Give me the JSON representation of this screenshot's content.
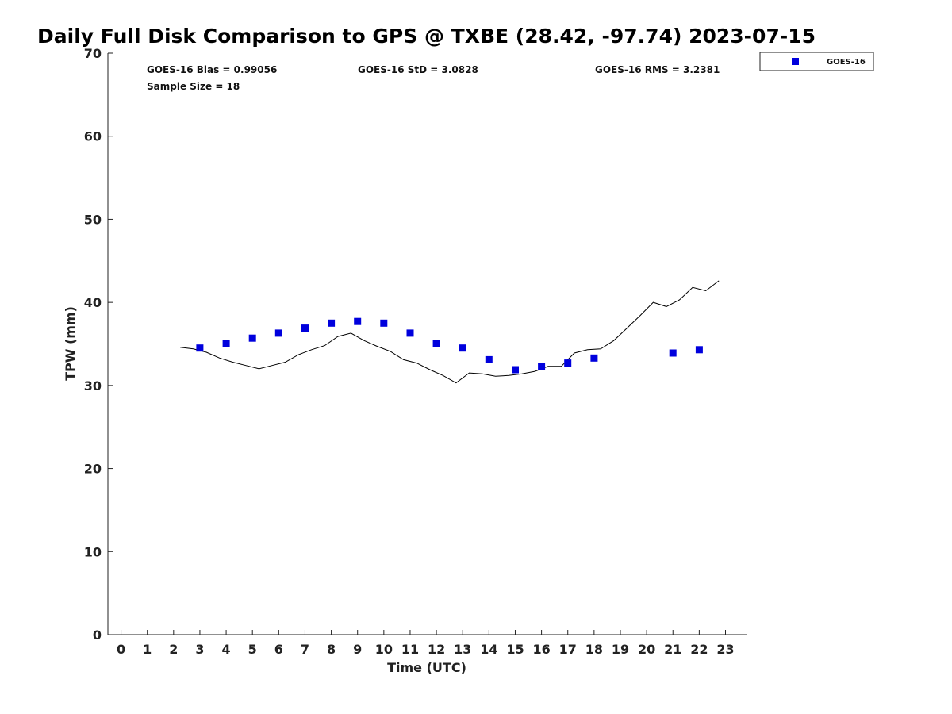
{
  "chart_data": {
    "type": "scatter",
    "title": "Daily Full Disk Comparison to GPS @ TXBE (28.42, -97.74) 2023-07-15",
    "xlabel": "Time (UTC)",
    "ylabel": "TPW (mm)",
    "xlim": [
      -0.5,
      23.8
    ],
    "ylim": [
      0,
      70
    ],
    "x_ticks": [
      0,
      1,
      2,
      3,
      4,
      5,
      6,
      7,
      8,
      9,
      10,
      11,
      12,
      13,
      14,
      15,
      16,
      17,
      18,
      19,
      20,
      21,
      22,
      23
    ],
    "y_ticks": [
      0,
      10,
      20,
      30,
      40,
      50,
      60,
      70
    ],
    "grid": false,
    "legend": {
      "placement": "top-right, outside plot",
      "entries": [
        "GOES-16"
      ]
    },
    "stats": {
      "bias": "GOES-16 Bias = 0.99056",
      "std": "GOES-16 StD = 3.0828",
      "rms": "GOES-16 RMS = 3.2381",
      "sample_size": "Sample Size = 18"
    },
    "series": [
      {
        "name": "GOES-16",
        "kind": "markers",
        "marker": "square",
        "color": "#0000dd",
        "x": [
          3,
          4,
          5,
          6,
          7,
          8,
          9,
          10,
          11,
          12,
          13,
          14,
          15,
          16,
          17,
          18,
          21,
          22
        ],
        "y": [
          34.5,
          35.1,
          35.7,
          36.3,
          36.9,
          37.5,
          37.7,
          37.5,
          36.3,
          35.1,
          34.5,
          33.1,
          31.9,
          32.3,
          32.7,
          33.3,
          33.9,
          34.3
        ]
      },
      {
        "kind": "line",
        "color": "#000000",
        "x": [
          2.25,
          2.75,
          3.25,
          3.75,
          4.25,
          4.75,
          5.25,
          5.75,
          6.25,
          6.75,
          7.25,
          7.75,
          8.25,
          8.75,
          9.25,
          9.75,
          10.25,
          10.75,
          11.25,
          11.75,
          12.25,
          12.75,
          13.25,
          13.75,
          14.25,
          14.75,
          15.25,
          15.75,
          16.25,
          16.75,
          17.25,
          17.75,
          18.25,
          18.75,
          19.25,
          19.75,
          20.25,
          20.75,
          21.25,
          21.75,
          22.25,
          22.75
        ],
        "y": [
          34.6,
          34.4,
          34.0,
          33.3,
          32.8,
          32.4,
          32.0,
          32.4,
          32.8,
          33.7,
          34.3,
          34.8,
          35.9,
          36.3,
          35.4,
          34.7,
          34.1,
          33.1,
          32.7,
          31.9,
          31.2,
          30.3,
          31.5,
          31.4,
          31.1,
          31.2,
          31.4,
          31.7,
          32.3,
          32.3,
          33.9,
          34.3,
          34.4,
          35.4,
          36.9,
          38.4,
          40.0,
          39.5,
          40.3,
          41.8,
          41.4,
          42.6
        ]
      }
    ],
    "colors": {
      "markers": "#0000dd",
      "line": "#000000",
      "axis": "#222222"
    }
  }
}
